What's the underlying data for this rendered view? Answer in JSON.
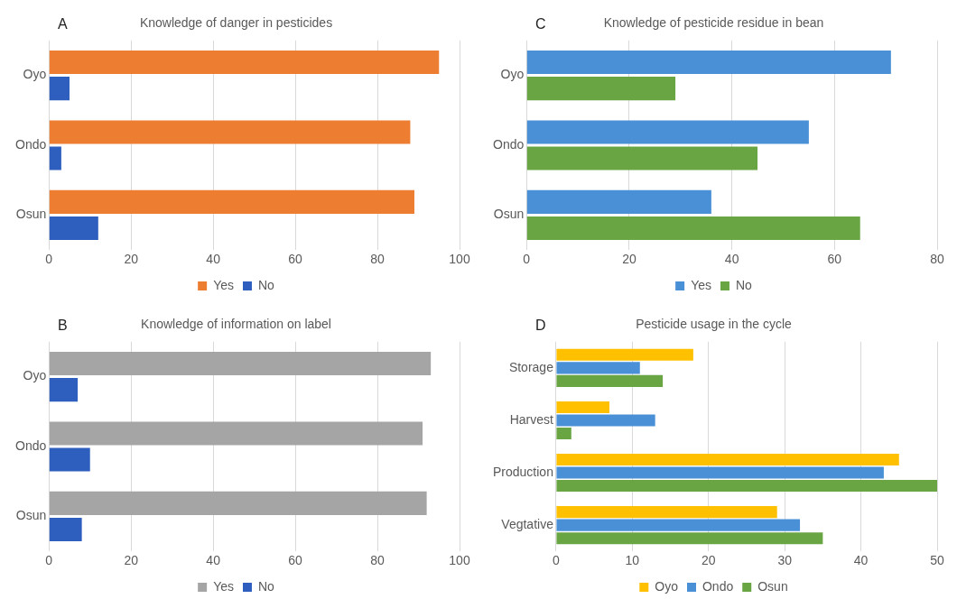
{
  "chart_data": [
    {
      "type": "bar",
      "orientation": "horizontal",
      "title": "Knowledge of danger in pesticides",
      "annotations": [
        "A"
      ],
      "categories": [
        "Oyo",
        "Ondo",
        "Osun"
      ],
      "series": [
        {
          "name": "Yes",
          "color": "#ed7d31",
          "values": [
            95,
            88,
            89
          ]
        },
        {
          "name": "No",
          "color": "#2e5fbe",
          "values": [
            5,
            3,
            12
          ]
        }
      ],
      "xlim": [
        0,
        100
      ],
      "xticks": [
        0,
        20,
        40,
        60,
        80,
        100
      ],
      "grid": "x",
      "legend": "bottom"
    },
    {
      "type": "bar",
      "orientation": "horizontal",
      "title": "Knowledge of pesticide residue in bean",
      "annotations": [
        "C"
      ],
      "categories": [
        "Oyo",
        "Ondo",
        "Osun"
      ],
      "series": [
        {
          "name": "Yes",
          "color": "#4a90d6",
          "values": [
            71,
            55,
            36
          ]
        },
        {
          "name": "No",
          "color": "#6aa544",
          "values": [
            29,
            45,
            65
          ]
        }
      ],
      "xlim": [
        0,
        80
      ],
      "xticks": [
        0,
        20,
        40,
        60,
        80
      ],
      "grid": "x",
      "legend": "bottom"
    },
    {
      "type": "bar",
      "orientation": "horizontal",
      "title": "Knowledge of information on label",
      "annotations": [
        "B"
      ],
      "categories": [
        "Oyo",
        "Ondo",
        "Osun"
      ],
      "series": [
        {
          "name": "Yes",
          "color": "#a5a5a5",
          "values": [
            93,
            91,
            92
          ]
        },
        {
          "name": "No",
          "color": "#2e5fbe",
          "values": [
            7,
            10,
            8
          ]
        }
      ],
      "xlim": [
        0,
        100
      ],
      "xticks": [
        0,
        20,
        40,
        60,
        80,
        100
      ],
      "grid": "x",
      "legend": "bottom"
    },
    {
      "type": "bar",
      "orientation": "horizontal",
      "title": "Pesticide usage in the cycle",
      "annotations": [
        "D"
      ],
      "categories": [
        "Storage",
        "Harvest",
        "Production",
        "Vegtative"
      ],
      "series": [
        {
          "name": "Oyo",
          "color": "#ffc000",
          "values": [
            18,
            7,
            45,
            29
          ]
        },
        {
          "name": "Ondo",
          "color": "#4a90d6",
          "values": [
            11,
            13,
            43,
            32
          ]
        },
        {
          "name": "Osun",
          "color": "#6aa544",
          "values": [
            14,
            2,
            50,
            35
          ]
        }
      ],
      "xlim": [
        0,
        50
      ],
      "xticks": [
        0,
        10,
        20,
        30,
        40,
        50
      ],
      "grid": "x",
      "legend": "bottom"
    }
  ]
}
